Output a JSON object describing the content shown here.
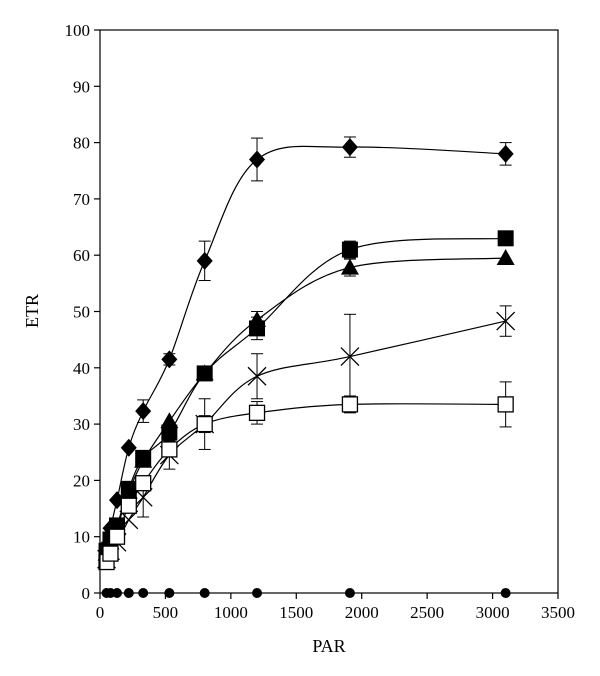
{
  "chart_data": {
    "type": "line",
    "title": "",
    "xlabel": "PAR",
    "ylabel": "ETR",
    "xlim": [
      0,
      3500
    ],
    "ylim": [
      0,
      100
    ],
    "xticks": [
      0,
      500,
      1000,
      1500,
      2000,
      2500,
      3000,
      3500
    ],
    "yticks": [
      0,
      10,
      20,
      30,
      40,
      50,
      60,
      70,
      80,
      90,
      100
    ],
    "grid": false,
    "legend": "none",
    "series": [
      {
        "marker": "diamond-filled",
        "points": [
          {
            "x": 50,
            "y": 8,
            "err": 0
          },
          {
            "x": 80,
            "y": 11.5,
            "err": 0
          },
          {
            "x": 130,
            "y": 16.5,
            "err": 0
          },
          {
            "x": 220,
            "y": 25.8,
            "err": 0
          },
          {
            "x": 330,
            "y": 32.3,
            "err": 2
          },
          {
            "x": 530,
            "y": 41.5,
            "err": 1
          },
          {
            "x": 800,
            "y": 59,
            "err": 3.5
          },
          {
            "x": 1200,
            "y": 77,
            "err": 3.8
          },
          {
            "x": 1910,
            "y": 79.2,
            "err": 1.8
          },
          {
            "x": 3100,
            "y": 78,
            "err": 2
          }
        ]
      },
      {
        "marker": "square-filled",
        "points": [
          {
            "x": 50,
            "y": 7.5,
            "err": 0
          },
          {
            "x": 80,
            "y": 9.5,
            "err": 0
          },
          {
            "x": 130,
            "y": 12,
            "err": 0
          },
          {
            "x": 220,
            "y": 18.5,
            "err": 0
          },
          {
            "x": 330,
            "y": 24,
            "err": 0
          },
          {
            "x": 530,
            "y": 28.5,
            "err": 0
          },
          {
            "x": 800,
            "y": 39,
            "err": 0
          },
          {
            "x": 1200,
            "y": 47,
            "err": 2
          },
          {
            "x": 1910,
            "y": 61,
            "err": 1.5
          },
          {
            "x": 3100,
            "y": 63,
            "err": 0
          }
        ]
      },
      {
        "marker": "triangle-filled",
        "points": [
          {
            "x": 50,
            "y": 7,
            "err": 0
          },
          {
            "x": 80,
            "y": 9,
            "err": 0
          },
          {
            "x": 130,
            "y": 11.5,
            "err": 0
          },
          {
            "x": 220,
            "y": 18,
            "err": 0
          },
          {
            "x": 330,
            "y": 23.5,
            "err": 0
          },
          {
            "x": 530,
            "y": 30.5,
            "err": 0
          },
          {
            "x": 800,
            "y": 39,
            "err": 0
          },
          {
            "x": 1200,
            "y": 48.5,
            "err": 1.5
          },
          {
            "x": 1910,
            "y": 57.8,
            "err": 1.5
          },
          {
            "x": 3100,
            "y": 59.5,
            "err": 0
          }
        ]
      },
      {
        "marker": "x",
        "points": [
          {
            "x": 50,
            "y": 6,
            "err": 0
          },
          {
            "x": 80,
            "y": 7.5,
            "err": 0
          },
          {
            "x": 130,
            "y": 9,
            "err": 0
          },
          {
            "x": 220,
            "y": 13,
            "err": 0
          },
          {
            "x": 330,
            "y": 17,
            "err": 3.5
          },
          {
            "x": 530,
            "y": 24.5,
            "err": 2.5
          },
          {
            "x": 800,
            "y": 30,
            "err": 4.5
          },
          {
            "x": 1200,
            "y": 38.5,
            "err": 4
          },
          {
            "x": 1910,
            "y": 42,
            "err": 7.5
          },
          {
            "x": 3100,
            "y": 48.3,
            "err": 2.7
          }
        ]
      },
      {
        "marker": "square-open",
        "points": [
          {
            "x": 50,
            "y": 5.5,
            "err": 0
          },
          {
            "x": 80,
            "y": 7,
            "err": 0
          },
          {
            "x": 130,
            "y": 10,
            "err": 0
          },
          {
            "x": 220,
            "y": 15.5,
            "err": 0
          },
          {
            "x": 330,
            "y": 19.5,
            "err": 0
          },
          {
            "x": 530,
            "y": 25.5,
            "err": 0
          },
          {
            "x": 800,
            "y": 30,
            "err": 1.5
          },
          {
            "x": 1200,
            "y": 32,
            "err": 2
          },
          {
            "x": 1910,
            "y": 33.5,
            "err": 1.5
          },
          {
            "x": 3100,
            "y": 33.5,
            "err": 4
          }
        ]
      },
      {
        "marker": "circle-filled",
        "points": [
          {
            "x": 50,
            "y": 0,
            "err": 0
          },
          {
            "x": 80,
            "y": 0,
            "err": 0
          },
          {
            "x": 130,
            "y": 0,
            "err": 0
          },
          {
            "x": 220,
            "y": 0,
            "err": 0
          },
          {
            "x": 330,
            "y": 0,
            "err": 0
          },
          {
            "x": 530,
            "y": 0,
            "err": 0
          },
          {
            "x": 800,
            "y": 0,
            "err": 0
          },
          {
            "x": 1200,
            "y": 0,
            "err": 0
          },
          {
            "x": 1910,
            "y": 0,
            "err": 0
          },
          {
            "x": 3100,
            "y": 0,
            "err": 0
          }
        ]
      }
    ]
  }
}
